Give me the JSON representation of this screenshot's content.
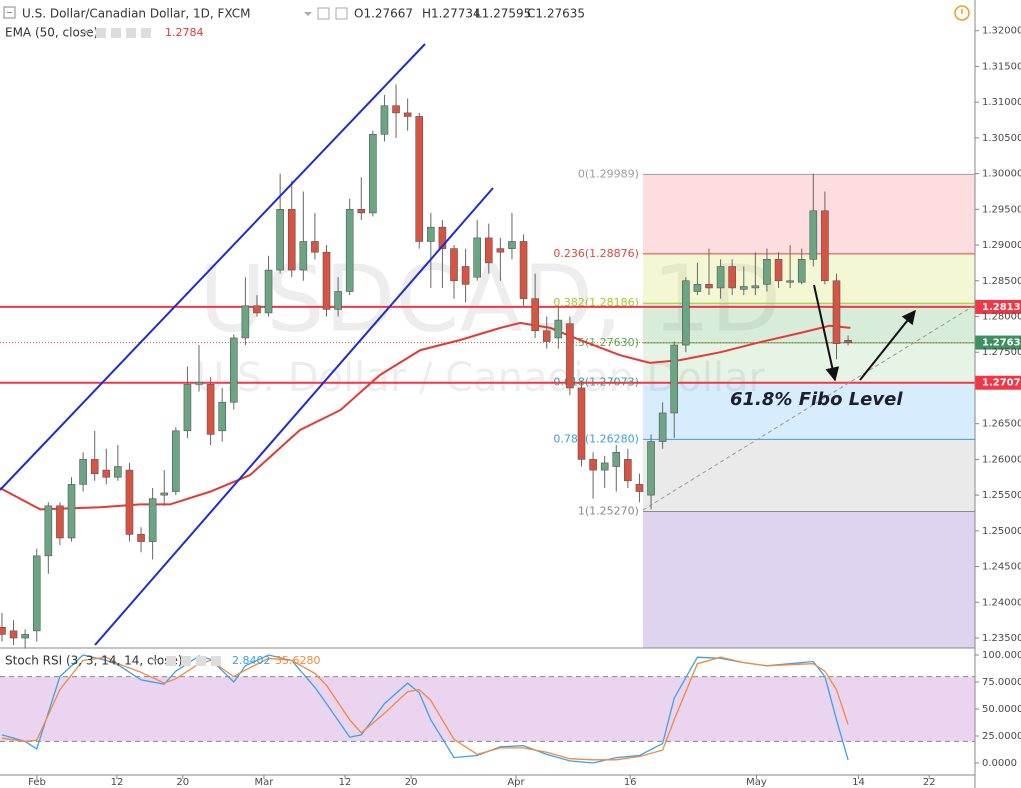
{
  "chart_data": [
    {
      "type": "candlestick",
      "title": "U.S. Dollar/Canadian Dollar, 1D, FXCM",
      "ohlc_labels": [
        "O1.27667",
        "H1.27734",
        "L1.27595",
        "C1.27635"
      ],
      "watermark": "USDCAD, 1D",
      "watermark_sub": "U.S. Dollar / Canadian Dollar",
      "indicator": "EMA (50, close)",
      "indicator_value": "1.2784",
      "annotation": "61.8% Fibo Level",
      "xlim": [
        -0.17,
        83.95
      ],
      "ylim": [
        1.2336,
        1.3243
      ],
      "yticks": [
        {
          "value": 1.32,
          "label": "1.32000"
        },
        {
          "value": 1.315,
          "label": "1.31500"
        },
        {
          "value": 1.31,
          "label": "1.31000"
        },
        {
          "value": 1.305,
          "label": "1.30500"
        },
        {
          "value": 1.3,
          "label": "1.30000"
        },
        {
          "value": 1.295,
          "label": "1.29500"
        },
        {
          "value": 1.29,
          "label": "1.29000"
        },
        {
          "value": 1.285,
          "label": "1.28500"
        },
        {
          "value": 1.28,
          "label": "1.28000"
        },
        {
          "value": 1.275,
          "label": "1.27500"
        },
        {
          "value": 1.265,
          "label": "1.26500"
        },
        {
          "value": 1.26,
          "label": "1.26000"
        },
        {
          "value": 1.255,
          "label": "1.25500"
        },
        {
          "value": 1.25,
          "label": "1.25000"
        },
        {
          "value": 1.245,
          "label": "1.24500"
        },
        {
          "value": 1.24,
          "label": "1.24000"
        },
        {
          "value": 1.235,
          "label": "1.23500"
        }
      ],
      "up_color": "#6ba583",
      "down_color": "#d75442",
      "candles": [
        [
          1.2365,
          1.2385,
          1.2345,
          1.2355
        ],
        [
          1.236,
          1.2375,
          1.234,
          1.235
        ],
        [
          1.235,
          1.2362,
          1.2335,
          1.2355
        ],
        [
          1.236,
          1.2475,
          1.2345,
          1.2465
        ],
        [
          1.2465,
          1.254,
          1.244,
          1.2535
        ],
        [
          1.2535,
          1.254,
          1.248,
          1.249
        ],
        [
          1.249,
          1.2575,
          1.2485,
          1.2565
        ],
        [
          1.2565,
          1.261,
          1.2555,
          1.26
        ],
        [
          1.26,
          1.264,
          1.257,
          1.258
        ],
        [
          1.2585,
          1.2615,
          1.2565,
          1.2575
        ],
        [
          1.2575,
          1.262,
          1.257,
          1.259
        ],
        [
          1.2585,
          1.2595,
          1.2485,
          1.2495
        ],
        [
          1.2495,
          1.2505,
          1.247,
          1.2485
        ],
        [
          1.2485,
          1.256,
          1.246,
          1.2545
        ],
        [
          1.255,
          1.2585,
          1.2535,
          1.2553
        ],
        [
          1.2555,
          1.2645,
          1.255,
          1.264
        ],
        [
          1.264,
          1.273,
          1.263,
          1.2705
        ],
        [
          1.2705,
          1.276,
          1.2695,
          1.2708
        ],
        [
          1.2705,
          1.2715,
          1.262,
          1.2635
        ],
        [
          1.264,
          1.27,
          1.2625,
          1.268
        ],
        [
          1.268,
          1.2775,
          1.267,
          1.277
        ],
        [
          1.277,
          1.2855,
          1.276,
          1.2815
        ],
        [
          1.2815,
          1.283,
          1.28,
          1.2805
        ],
        [
          1.2805,
          1.2885,
          1.28,
          1.2865
        ],
        [
          1.2865,
          1.3,
          1.286,
          1.295
        ],
        [
          1.295,
          1.299,
          1.2855,
          1.2865
        ],
        [
          1.2865,
          1.2975,
          1.285,
          1.2905
        ],
        [
          1.2905,
          1.2945,
          1.288,
          1.289
        ],
        [
          1.289,
          1.29,
          1.28,
          1.281
        ],
        [
          1.281,
          1.2855,
          1.28,
          1.2835
        ],
        [
          1.2835,
          1.2965,
          1.283,
          1.295
        ],
        [
          1.295,
          1.2995,
          1.2935,
          1.2945
        ],
        [
          1.2945,
          1.306,
          1.294,
          1.3055
        ],
        [
          1.3055,
          1.311,
          1.3045,
          1.3095
        ],
        [
          1.3095,
          1.3125,
          1.305,
          1.3085
        ],
        [
          1.3085,
          1.3105,
          1.306,
          1.308
        ],
        [
          1.308,
          1.3085,
          1.2895,
          1.2905
        ],
        [
          1.2905,
          1.2945,
          1.284,
          1.2925
        ],
        [
          1.2925,
          1.2935,
          1.284,
          1.2895
        ],
        [
          1.2895,
          1.29,
          1.2825,
          1.285
        ],
        [
          1.287,
          1.2895,
          1.282,
          1.2845
        ],
        [
          1.2855,
          1.2935,
          1.285,
          1.291
        ],
        [
          1.291,
          1.293,
          1.286,
          1.2875
        ],
        [
          1.2895,
          1.291,
          1.285,
          1.289
        ],
        [
          1.2895,
          1.2945,
          1.288,
          1.2905
        ],
        [
          1.2905,
          1.2915,
          1.2815,
          1.2825
        ],
        [
          1.2825,
          1.286,
          1.277,
          1.278
        ],
        [
          1.278,
          1.28,
          1.2755,
          1.2765
        ],
        [
          1.277,
          1.2815,
          1.2755,
          1.2795
        ],
        [
          1.279,
          1.28,
          1.269,
          1.27
        ],
        [
          1.27,
          1.271,
          1.259,
          1.26
        ],
        [
          1.26,
          1.261,
          1.2545,
          1.2585
        ],
        [
          1.2585,
          1.2605,
          1.256,
          1.2595
        ],
        [
          1.259,
          1.262,
          1.2555,
          1.261
        ],
        [
          1.26,
          1.2615,
          1.256,
          1.257
        ],
        [
          1.2565,
          1.258,
          1.254,
          1.2555
        ],
        [
          1.255,
          1.2635,
          1.253,
          1.2625
        ],
        [
          1.2625,
          1.268,
          1.2615,
          1.2665
        ],
        [
          1.2665,
          1.2765,
          1.263,
          1.276
        ],
        [
          1.276,
          1.2855,
          1.275,
          1.285
        ],
        [
          1.2835,
          1.2875,
          1.283,
          1.2845
        ],
        [
          1.2845,
          1.2895,
          1.283,
          1.284
        ],
        [
          1.284,
          1.288,
          1.2825,
          1.287
        ],
        [
          1.287,
          1.288,
          1.283,
          1.284
        ],
        [
          1.2838,
          1.287,
          1.283,
          1.2842
        ],
        [
          1.284,
          1.289,
          1.283,
          1.2843
        ],
        [
          1.2845,
          1.2895,
          1.2835,
          1.288
        ],
        [
          1.288,
          1.289,
          1.284,
          1.285
        ],
        [
          1.2848,
          1.29,
          1.284,
          1.285
        ],
        [
          1.2848,
          1.2895,
          1.2845,
          1.288
        ],
        [
          1.288,
          1.3,
          1.287,
          1.2948
        ],
        [
          1.2948,
          1.2975,
          1.2845,
          1.285
        ],
        [
          1.285,
          1.286,
          1.274,
          1.2762
        ],
        [
          1.27667,
          1.27734,
          1.27595,
          1.27635
        ]
      ],
      "ema": {
        "color": "#e53935",
        "x": [
          -0.17,
          3.3,
          8.5,
          11.9,
          14.5,
          18,
          21.4,
          25.7,
          29.2,
          32.6,
          36.1,
          39.5,
          43,
          44.7,
          47.3,
          49.9,
          53.3,
          55.9,
          58.5,
          62,
          65.4,
          68.9,
          71.4,
          73.2
        ],
        "values": [
          1.256,
          1.253,
          1.2533,
          1.2537,
          1.2537,
          1.2555,
          1.2578,
          1.2641,
          1.2669,
          1.2718,
          1.2753,
          1.2767,
          1.2784,
          1.2791,
          1.2784,
          1.2767,
          1.2746,
          1.2735,
          1.2739,
          1.275,
          1.2764,
          1.2777,
          1.2787,
          1.2784
        ]
      },
      "hlines": [
        {
          "value": 1.28134,
          "label": "1.28134",
          "color": "#f23645"
        },
        {
          "value": 1.27073,
          "label": "1.27073",
          "color": "#f23645"
        }
      ],
      "last_price": {
        "value": 1.27635,
        "label": "1.27635",
        "color": "#3f8f5f"
      },
      "fib": {
        "x0": 55.3,
        "levels": [
          {
            "value": 1.29989,
            "label": "0(1.29989)",
            "color": "#9e9e9e",
            "fill": "rgba(242,54,69,0.17)"
          },
          {
            "value": 1.28876,
            "label": "0.236(1.28876)",
            "color": "#e0483b",
            "fill": "rgba(205,220,57,0.22)"
          },
          {
            "value": 1.28186,
            "label": "0.382(1.28186)",
            "color": "#9ccc2a",
            "fill": "rgba(76,175,80,0.22)"
          },
          {
            "value": 1.2763,
            "label": "0.5(1.27630)",
            "color": "#4caf50",
            "fill": "rgba(76,175,80,0.14)"
          },
          {
            "value": 1.27073,
            "label": "0.618(1.27073)",
            "color": "#26a69a",
            "fill": "rgba(33,150,243,0.18)"
          },
          {
            "value": 1.2628,
            "label": "0.786(1.26280)",
            "color": "#3d9fd9",
            "fill": "rgba(140,140,140,0.18)"
          },
          {
            "value": 1.2527,
            "label": "1(1.25270)",
            "color": "#8a8a8a",
            "fill": "rgba(103,58,183,0.22)"
          }
        ]
      }
    },
    {
      "type": "line",
      "title": "Stoch RSI (3, 3, 14, 14, close)",
      "xlim": [
        -0.17,
        83.95
      ],
      "ylim": [
        -11.1,
        106.5
      ],
      "yticks": [
        {
          "value": 100,
          "label": "100.0000"
        },
        {
          "value": 75,
          "label": "75.0000"
        },
        {
          "value": 50,
          "label": "50.0000"
        },
        {
          "value": 25,
          "label": "25.0000"
        },
        {
          "value": 0,
          "label": "0.0000"
        }
      ],
      "band": [
        20,
        80
      ],
      "band_color": "#9c27b0",
      "xticks": [
        {
          "value": 3.02,
          "label": "Feb"
        },
        {
          "value": 9.92,
          "label": "12"
        },
        {
          "value": 15.6,
          "label": "20"
        },
        {
          "value": 22.6,
          "label": "Mar"
        },
        {
          "value": 29.6,
          "label": "12"
        },
        {
          "value": 35.3,
          "label": "20"
        },
        {
          "value": 44.35,
          "label": "Apr"
        },
        {
          "value": 54.2,
          "label": "16"
        },
        {
          "value": 65.1,
          "label": "May"
        },
        {
          "value": 73.9,
          "label": "14"
        },
        {
          "value": 80,
          "label": "22"
        }
      ],
      "x": [
        0,
        2,
        3,
        5,
        7,
        9,
        10,
        12,
        14,
        15,
        17,
        18,
        20,
        21,
        23,
        25,
        27,
        28,
        30,
        31,
        33,
        35,
        36,
        37,
        39,
        41,
        43,
        45,
        47,
        49,
        51,
        53,
        55,
        57,
        58,
        60,
        62,
        64,
        66,
        68,
        70,
        71,
        72,
        73
      ],
      "series": [
        {
          "value_label": "2.8402",
          "color": "#3ba3e8",
          "values": [
            26,
            20,
            13,
            80,
            100,
            95,
            91,
            77,
            73,
            85,
            99,
            96,
            75,
            90,
            100,
            95,
            70,
            55,
            24,
            26,
            55,
            74,
            65,
            40,
            5,
            7,
            15,
            16,
            8,
            2,
            0,
            5,
            7,
            18,
            60,
            98,
            97,
            93,
            90,
            92,
            94,
            80,
            40,
            2.8402
          ]
        },
        {
          "value_label": "35.6280",
          "color": "#f5883a",
          "values": [
            23,
            20,
            21,
            68,
            95,
            98,
            92,
            84,
            74,
            78,
            92,
            95,
            80,
            86,
            97,
            95,
            83,
            72,
            40,
            28,
            46,
            66,
            68,
            58,
            22,
            8,
            14,
            14,
            10,
            4,
            3,
            3,
            6,
            12,
            40,
            92,
            98,
            93,
            90,
            91,
            92,
            85,
            68,
            35.628
          ]
        }
      ]
    }
  ]
}
